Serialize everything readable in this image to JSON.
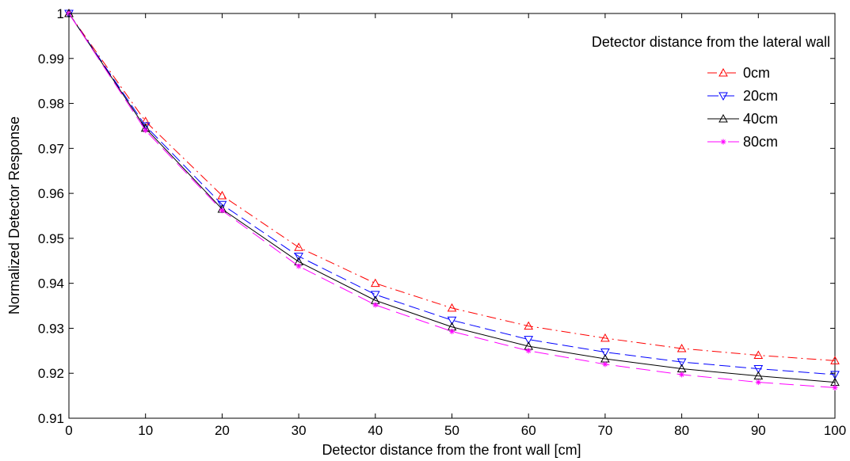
{
  "chart_data": {
    "type": "line",
    "xlabel": "Detector distance from the front wall [cm]",
    "ylabel": "Normalized Detector Response",
    "xlim": [
      0,
      100
    ],
    "ylim": [
      0.91,
      1.0
    ],
    "x_ticks": [
      0,
      10,
      20,
      30,
      40,
      50,
      60,
      70,
      80,
      90,
      100
    ],
    "y_ticks": [
      0.91,
      0.92,
      0.93,
      0.94,
      0.95,
      0.96,
      0.97,
      0.98,
      0.99,
      1.0
    ],
    "x_tick_labels": [
      "0",
      "10",
      "20",
      "30",
      "40",
      "50",
      "60",
      "70",
      "80",
      "90",
      "100"
    ],
    "y_tick_labels": [
      "0.91",
      "0.92",
      "0.93",
      "0.94",
      "0.95",
      "0.96",
      "0.97",
      "0.98",
      "0.99",
      "1"
    ],
    "grid": false,
    "legend_title": "Detector distance from the lateral wall",
    "legend_position": "top-right",
    "x": [
      0,
      10,
      20,
      30,
      40,
      50,
      60,
      70,
      80,
      90,
      100
    ],
    "series": [
      {
        "name": "0cm",
        "color": "#ff0000",
        "dash": "dash-dot",
        "marker": "triangle-up",
        "values": [
          1.0,
          0.976,
          0.9595,
          0.948,
          0.94,
          0.9345,
          0.9305,
          0.9278,
          0.9255,
          0.924,
          0.9228
        ]
      },
      {
        "name": "20cm",
        "color": "#0000ff",
        "dash": "dashed",
        "marker": "triangle-down",
        "values": [
          1.0,
          0.975,
          0.9575,
          0.946,
          0.9375,
          0.9318,
          0.9275,
          0.9247,
          0.9225,
          0.921,
          0.9197
        ]
      },
      {
        "name": "40cm",
        "color": "#000000",
        "dash": "solid",
        "marker": "triangle-up",
        "values": [
          1.0,
          0.9745,
          0.9565,
          0.9448,
          0.9362,
          0.9303,
          0.926,
          0.9232,
          0.921,
          0.9194,
          0.918
        ]
      },
      {
        "name": "80cm",
        "color": "#ff00ff",
        "dash": "long-dashed",
        "marker": "asterisk",
        "values": [
          1.0,
          0.974,
          0.9562,
          0.9438,
          0.9352,
          0.9293,
          0.925,
          0.922,
          0.9197,
          0.918,
          0.9168
        ]
      }
    ]
  }
}
